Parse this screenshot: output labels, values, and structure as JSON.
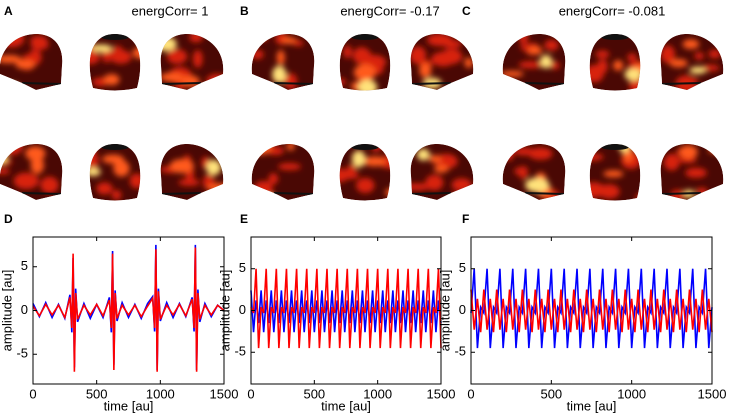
{
  "panel_labels": [
    "A",
    "B",
    "C",
    "D",
    "E",
    "F"
  ],
  "titles": [
    "energCorr= 1",
    "energCorr= -0.17",
    "energCorr= -0.081"
  ],
  "chart_data": [
    {
      "type": "line",
      "xlabel": "time [au]",
      "ylabel": "amplitude [au]",
      "xlim": [
        0,
        1500
      ],
      "ylim": [
        -8.4,
        8.4
      ],
      "xticks": [
        0,
        500,
        1000,
        1500
      ],
      "yticks": [
        -5,
        0,
        5
      ],
      "x": [
        0,
        50,
        100,
        150,
        200,
        250,
        290,
        305,
        315,
        325,
        335,
        350,
        400,
        450,
        500,
        550,
        600,
        615,
        625,
        635,
        645,
        660,
        700,
        750,
        800,
        850,
        900,
        940,
        955,
        965,
        975,
        985,
        1000,
        1050,
        1100,
        1150,
        1200,
        1250,
        1265,
        1275,
        1285,
        1295,
        1310,
        1350,
        1400,
        1450,
        1500
      ],
      "series": [
        {
          "color": "#0000ff",
          "values": [
            0.8,
            -0.7,
            0.9,
            -0.8,
            0.7,
            -0.9,
            1.8,
            -2.5,
            6,
            -6.5,
            2.5,
            -1.3,
            0.8,
            -0.9,
            0.7,
            -0.8,
            1.5,
            -2.5,
            6.8,
            -6.2,
            2.3,
            -1.2,
            0.9,
            -0.8,
            0.7,
            -0.9,
            0.8,
            1.6,
            -2.4,
            7.5,
            -6.8,
            2.5,
            -1.2,
            0.9,
            -0.8,
            0.8,
            -0.7,
            1.5,
            -2.4,
            7.5,
            -6.8,
            2.4,
            -1.3,
            0.8,
            -0.7,
            0.6,
            0
          ]
        },
        {
          "color": "#ff0000",
          "values": [
            0.5,
            -0.6,
            0.7,
            -0.5,
            0.6,
            -0.8,
            1.5,
            -2,
            6.5,
            -7,
            2,
            -1,
            0.6,
            -0.5,
            0.7,
            -0.6,
            1.2,
            -2,
            6.5,
            -6.8,
            2,
            -0.9,
            0.6,
            -0.5,
            0.6,
            -0.7,
            0.5,
            1.4,
            -2,
            7,
            -7,
            2.2,
            -1,
            0.6,
            -0.5,
            0.7,
            -0.6,
            1.3,
            -2,
            7.2,
            -7,
            2,
            -1,
            0.6,
            -0.5,
            0.6,
            0
          ]
        }
      ]
    },
    {
      "type": "line",
      "xlabel": "time [au]",
      "ylabel": "amplitude [au]",
      "xlim": [
        0,
        1500
      ],
      "ylim": [
        -8.8,
        8.8
      ],
      "xticks": [
        0,
        500,
        1000,
        1500
      ],
      "yticks": [
        -5,
        0,
        5
      ],
      "x": [
        0,
        20,
        40,
        60,
        80,
        100,
        120,
        140,
        160,
        180,
        200,
        220,
        240,
        260,
        280,
        300,
        320,
        340,
        360,
        380,
        400,
        420,
        440,
        460,
        480,
        500,
        520,
        540,
        560,
        580,
        600,
        620,
        640,
        660,
        680,
        700,
        720,
        740,
        760,
        780,
        800,
        820,
        840,
        860,
        880,
        900,
        920,
        940,
        960,
        980,
        1000,
        1020,
        1040,
        1060,
        1080,
        1100,
        1120,
        1140,
        1160,
        1180,
        1200,
        1220,
        1240,
        1260,
        1280,
        1300,
        1320,
        1340,
        1360,
        1380,
        1400,
        1420,
        1440,
        1460,
        1480,
        1500
      ],
      "series": [
        {
          "color": "#0000ff",
          "values": [
            2.4,
            -2.6,
            1.2,
            -1.5,
            2.4,
            -2.6,
            1.2,
            -1.5,
            2.4,
            -2.6,
            1.2,
            -1.5,
            2.4,
            -2.6,
            1.2,
            -1.5,
            2.4,
            -2.6,
            1.2,
            -1.5,
            2.4,
            -2.6,
            1.2,
            -1.5,
            2.4,
            -2.6,
            1.2,
            -1.5,
            2.4,
            -2.6,
            1.2,
            -1.5,
            2.4,
            -2.6,
            1.2,
            -1.5,
            2.4,
            -2.6,
            1.2,
            -1.5,
            2.4,
            -2.6,
            1.2,
            -1.5,
            2.4,
            -2.6,
            1.2,
            -1.5,
            2.4,
            -2.6,
            1.2,
            -1.5,
            2.4,
            -2.6,
            1.2,
            -1.5,
            2.4,
            -2.6,
            1.2,
            -1.5,
            2.4,
            -2.6,
            1.2,
            -1.5,
            2.4,
            -2.6,
            1.2,
            -1.5,
            2.4,
            -2.6,
            1.2,
            -1.5,
            2.4,
            -2.6,
            1.2,
            -1.5
          ]
        },
        {
          "color": "#ff0000",
          "values": [
            0.4,
            -0.3,
            5,
            -4.5,
            0.4,
            -0.3,
            5,
            -4.5,
            0.4,
            -0.3,
            5,
            -4.5,
            0.4,
            -0.3,
            5,
            -4.5,
            0.4,
            -0.3,
            5,
            -4.5,
            0.4,
            -0.3,
            5,
            -4.5,
            0.4,
            -0.3,
            5,
            -4.5,
            0.4,
            -0.3,
            5,
            -4.5,
            0.4,
            -0.3,
            5,
            -4.5,
            0.4,
            -0.3,
            5,
            -4.5,
            0.4,
            -0.3,
            5,
            -4.5,
            0.4,
            -0.3,
            5,
            -4.5,
            0.4,
            -0.3,
            5,
            -4.5,
            0.4,
            -0.3,
            5,
            -4.5,
            0.4,
            -0.3,
            5,
            -4.5,
            0.4,
            -0.3,
            5,
            -4.5,
            0.4,
            -0.3,
            5,
            -4.5,
            0.4,
            -0.3,
            5,
            -4.5,
            0.4,
            -0.3,
            5,
            -4.5
          ]
        }
      ]
    },
    {
      "type": "line",
      "xlabel": "time [au]",
      "ylabel": "amplitude [au]",
      "xlim": [
        0,
        1500
      ],
      "ylim": [
        -8.8,
        8.8
      ],
      "xticks": [
        0,
        500,
        1000,
        1500
      ],
      "yticks": [
        -5,
        0,
        5
      ],
      "x": [
        0,
        20,
        40,
        60,
        80,
        100,
        120,
        140,
        160,
        180,
        200,
        220,
        240,
        260,
        280,
        300,
        320,
        340,
        360,
        380,
        400,
        420,
        440,
        460,
        480,
        500,
        520,
        540,
        560,
        580,
        600,
        620,
        640,
        660,
        680,
        700,
        720,
        740,
        760,
        780,
        800,
        820,
        840,
        860,
        880,
        900,
        920,
        940,
        960,
        980,
        1000,
        1020,
        1040,
        1060,
        1080,
        1100,
        1120,
        1140,
        1160,
        1180,
        1200,
        1220,
        1240,
        1260,
        1280,
        1300,
        1320,
        1340,
        1360,
        1380,
        1400,
        1420,
        1440,
        1460,
        1480,
        1500
      ],
      "series": [
        {
          "color": "#0000ff",
          "values": [
            -0.3,
            5,
            -4.5,
            0.4,
            -0.3,
            5,
            -4.5,
            0.4,
            -0.3,
            5,
            -4.5,
            0.4,
            -0.3,
            5,
            -4.5,
            0.4,
            -0.3,
            5,
            -4.5,
            0.4,
            -0.3,
            5,
            -4.5,
            0.4,
            -0.3,
            5,
            -4.5,
            0.4,
            -0.3,
            5,
            -4.5,
            0.4,
            -0.3,
            5,
            -4.5,
            0.4,
            -0.3,
            5,
            -4.5,
            0.4,
            -0.3,
            5,
            -4.5,
            0.4,
            -0.3,
            5,
            -4.5,
            0.4,
            -0.3,
            5,
            -4.5,
            0.4,
            -0.3,
            5,
            -4.5,
            0.4,
            -0.3,
            5,
            -4.5,
            0.4,
            -0.3,
            5,
            -4.5,
            0.4,
            -0.3,
            5,
            -4.5,
            0.4,
            -0.3,
            5,
            -4.5,
            0.4,
            -0.3,
            5,
            -4.5,
            0.4
          ]
        },
        {
          "color": "#ff0000",
          "values": [
            2.5,
            -2.3,
            1.4,
            -2.6,
            2.5,
            -2.3,
            1.4,
            -2.6,
            2.5,
            -2.3,
            1.4,
            -2.6,
            2.5,
            -2.3,
            1.4,
            -2.6,
            2.5,
            -2.3,
            1.4,
            -2.6,
            2.5,
            -2.3,
            1.4,
            -2.6,
            2.5,
            -2.3,
            1.4,
            -2.6,
            2.5,
            -2.3,
            1.4,
            -2.6,
            2.5,
            -2.3,
            1.4,
            -2.6,
            2.5,
            -2.3,
            1.4,
            -2.6,
            2.5,
            -2.3,
            1.4,
            -2.6,
            2.5,
            -2.3,
            1.4,
            -2.6,
            2.5,
            -2.3,
            1.4,
            -2.6,
            2.5,
            -2.3,
            1.4,
            -2.6,
            2.5,
            -2.3,
            1.4,
            -2.6,
            2.5,
            -2.3,
            1.4,
            -2.6,
            2.5,
            -2.3,
            1.4,
            -2.6,
            2.5,
            -2.3,
            1.4,
            -2.6,
            2.5,
            -2.3,
            1.4,
            -2.6
          ]
        }
      ]
    }
  ]
}
